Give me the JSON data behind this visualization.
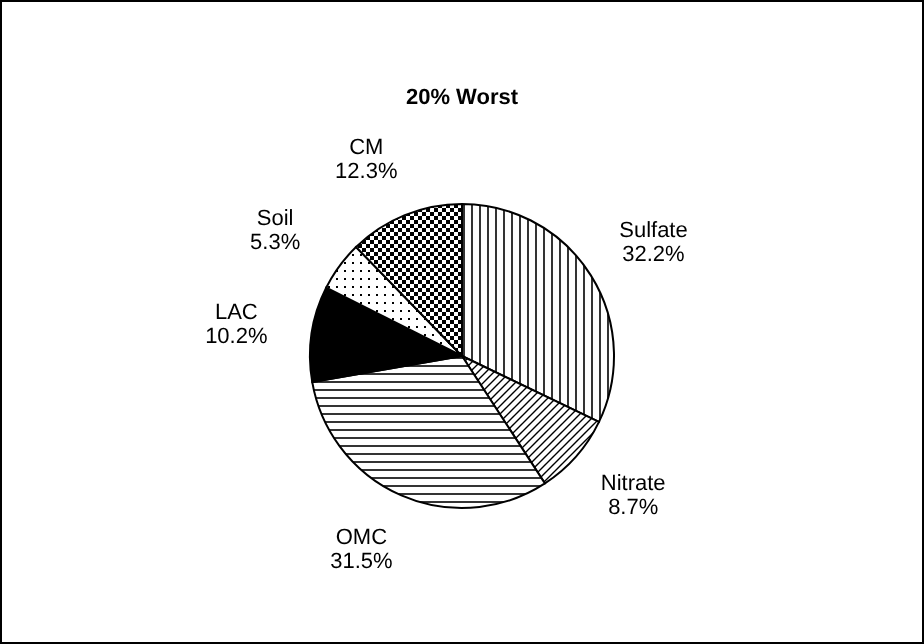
{
  "chart_data": {
    "type": "pie",
    "title": "20% Worst",
    "categories": [
      "Sulfate",
      "Nitrate",
      "OMC",
      "LAC",
      "Soil",
      "CM"
    ],
    "values": [
      32.2,
      8.7,
      31.5,
      10.2,
      5.3,
      12.3
    ],
    "value_labels": [
      "32.2%",
      "8.7%",
      "31.5%",
      "10.2%",
      "5.3%",
      "12.3%"
    ],
    "colors": [
      "#000000",
      "#000000",
      "#000000",
      "#000000",
      "#000000",
      "#000000"
    ]
  }
}
